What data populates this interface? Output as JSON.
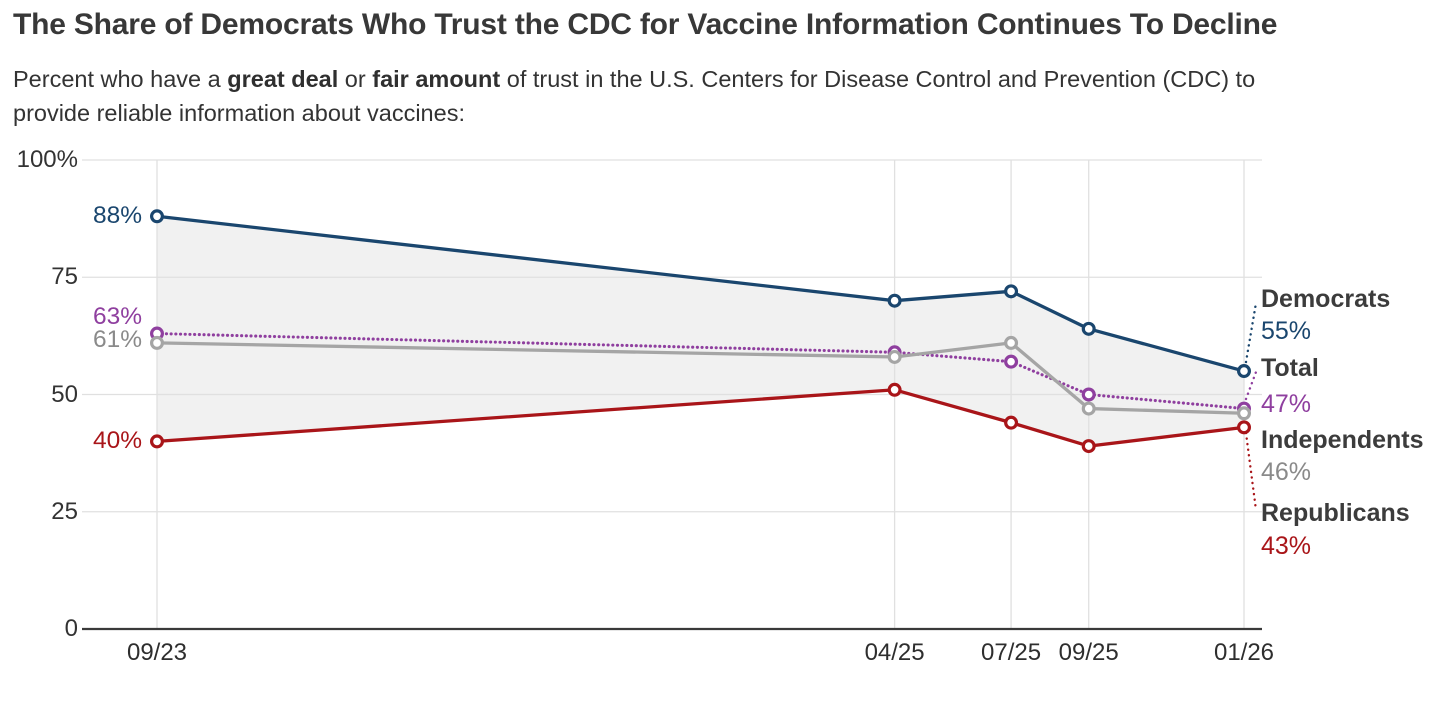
{
  "header": {
    "title": "The Share of Democrats Who Trust the CDC for Vaccine Information Continues To Decline",
    "subtitle_parts": {
      "pre": "Percent who have a ",
      "bold1": "great deal",
      "mid": " or ",
      "bold2": "fair amount",
      "post": " of trust in the U.S. Centers for Disease Control and Prevention (CDC) to",
      "line2": "provide reliable information about vaccines:"
    }
  },
  "chart_data": {
    "type": "line",
    "title": "The Share of Democrats Who Trust the CDC for Vaccine Information Continues To Decline",
    "x": {
      "dates": [
        "09/23",
        "04/25",
        "07/25",
        "09/25",
        "01/26"
      ],
      "month_offsets": [
        0,
        19,
        22,
        24,
        28
      ]
    },
    "y": {
      "range": [
        0,
        100
      ],
      "ticks": [
        {
          "value": 100,
          "label": "100%"
        },
        {
          "value": 75,
          "label": "75"
        },
        {
          "value": 50,
          "label": "50"
        },
        {
          "value": 25,
          "label": "25"
        },
        {
          "value": 0,
          "label": "0"
        }
      ]
    },
    "grid": true,
    "legend_position": "right",
    "band": {
      "between": [
        "Democrats",
        "Republicans"
      ],
      "color": "#f1f1f1"
    },
    "series": [
      {
        "name": "Democrats",
        "style": "solid",
        "color": "#1a466e",
        "label_color": "#1a466e",
        "values": [
          88,
          70,
          72,
          64,
          55
        ],
        "start_label": "88%",
        "end_label": "55%"
      },
      {
        "name": "Total",
        "style": "dotted",
        "color": "#8f3f9f",
        "label_color": "#8f3f9f",
        "values": [
          63,
          59,
          57,
          50,
          47
        ],
        "start_label": "63%",
        "end_label": "47%"
      },
      {
        "name": "Independents",
        "style": "solid",
        "color": "#a5a5a5",
        "label_color": "#8a8a8a",
        "values": [
          61,
          58,
          61,
          47,
          46
        ],
        "start_label": "61%",
        "end_label": "46%"
      },
      {
        "name": "Republicans",
        "style": "solid",
        "color": "#a91519",
        "label_color": "#a91519",
        "values": [
          40,
          51,
          44,
          39,
          43
        ],
        "start_label": "40%",
        "end_label": "43%"
      }
    ],
    "colors": {
      "grid": "#e0e0e0",
      "axis": "#3a3a3a",
      "text": "#333333"
    }
  }
}
